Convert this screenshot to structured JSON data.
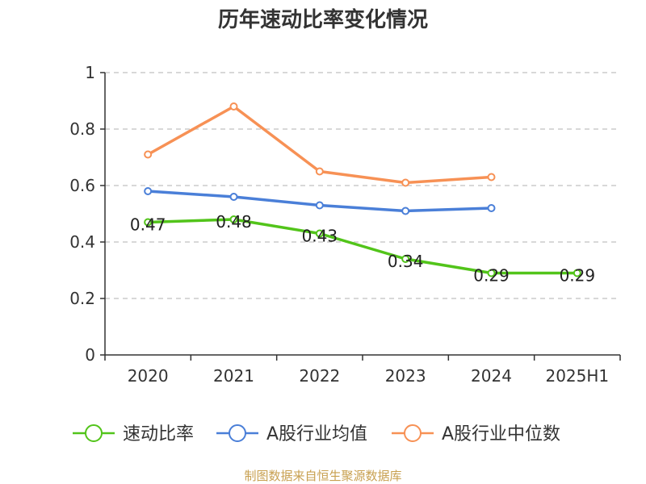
{
  "chart_data": {
    "type": "line",
    "title": "历年速动比率变化情况",
    "categories": [
      "2020",
      "2021",
      "2022",
      "2023",
      "2024",
      "2025H1"
    ],
    "ylim": [
      0,
      1
    ],
    "yticks": [
      "0",
      "0.2",
      "0.4",
      "0.6",
      "0.8",
      "1"
    ],
    "grid": true,
    "series": [
      {
        "name": "速动比率",
        "color": "#52c41a",
        "values": [
          0.47,
          0.48,
          0.43,
          0.34,
          0.29,
          0.29
        ],
        "labels": [
          "0.47",
          "0.48",
          "0.43",
          "0.34",
          "0.29",
          "0.29"
        ]
      },
      {
        "name": "A股行业均值",
        "color": "#4a7fd8",
        "values": [
          0.58,
          0.56,
          0.53,
          0.51,
          0.52,
          null
        ]
      },
      {
        "name": "A股行业中位数",
        "color": "#f79155",
        "values": [
          0.71,
          0.88,
          0.65,
          0.61,
          0.63,
          null
        ]
      }
    ],
    "legend_position": "bottom",
    "source": "制图数据来自恒生聚源数据库"
  }
}
